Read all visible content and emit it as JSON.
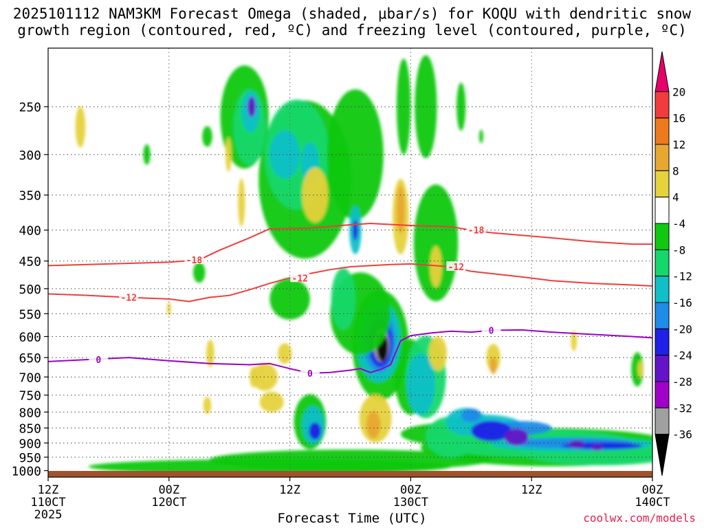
{
  "title": {
    "line1": "2025101112 NAM3KM Forecast Omega (shaded, μbar/s) for KOQU with dendritic snow",
    "line2": "growth region (contoured, red, ºC) and freezing level (contoured, purple, ºC)"
  },
  "xlabel": "Forecast Time (UTC)",
  "credit": "coolwx.com/models",
  "chart_data": {
    "type": "heatmap",
    "title": "2025101112 NAM3KM Forecast Omega (shaded, μbar/s) for KOQU with dendritic snow growth region (contoured, red, ºC) and freezing level (contoured, purple, ºC)",
    "xlabel": "Forecast Time (UTC)",
    "ylabel": "",
    "x_range_hours": [
      0,
      60
    ],
    "y_range_hPa": [
      1025,
      200
    ],
    "y_scale": "log-pressure (inverted)",
    "grid": true,
    "x_ticks": [
      {
        "h": 0,
        "lines": [
          "12Z",
          "110CT",
          "2025"
        ]
      },
      {
        "h": 12,
        "lines": [
          "00Z",
          "120CT"
        ]
      },
      {
        "h": 24,
        "lines": [
          "12Z"
        ]
      },
      {
        "h": 36,
        "lines": [
          "00Z",
          "130CT"
        ]
      },
      {
        "h": 48,
        "lines": [
          "12Z"
        ]
      },
      {
        "h": 60,
        "lines": [
          "00Z",
          "140CT"
        ]
      }
    ],
    "y_ticks": [
      250,
      300,
      350,
      400,
      450,
      500,
      550,
      600,
      650,
      700,
      750,
      800,
      850,
      900,
      950,
      1000
    ],
    "colorbar": {
      "labels": [
        20,
        16,
        12,
        8,
        4,
        -4,
        -8,
        -12,
        -16,
        -20,
        -24,
        -28,
        -32,
        -36
      ],
      "colors": [
        "#e8006a",
        "#f03c3c",
        "#ee7a1c",
        "#e8a830",
        "#e6d23c",
        "#ffffff",
        "#10c810",
        "#14d86c",
        "#10c0c8",
        "#1e8ce8",
        "#2020e8",
        "#6414c8",
        "#a000c8",
        "#a0a0a0",
        "#000000"
      ]
    },
    "contours": [
      {
        "label": "-18",
        "color": "#f03c3c",
        "points": [
          [
            0,
            458
          ],
          [
            6,
            455
          ],
          [
            12,
            452
          ],
          [
            15,
            448
          ],
          [
            17,
            432
          ],
          [
            20,
            412
          ],
          [
            22,
            398
          ],
          [
            26,
            397
          ],
          [
            30,
            392
          ],
          [
            32,
            390
          ],
          [
            36,
            393
          ],
          [
            40,
            395
          ],
          [
            42,
            400
          ],
          [
            44,
            404
          ],
          [
            47,
            408
          ],
          [
            50,
            412
          ],
          [
            54,
            418
          ],
          [
            58,
            422
          ],
          [
            60,
            422
          ]
        ]
      },
      {
        "label": "-12",
        "color": "#f03c3c",
        "points": [
          [
            0,
            510
          ],
          [
            4,
            513
          ],
          [
            8,
            517
          ],
          [
            12,
            520
          ],
          [
            14,
            525
          ],
          [
            16,
            517
          ],
          [
            18,
            513
          ],
          [
            20,
            502
          ],
          [
            22,
            490
          ],
          [
            24,
            480
          ],
          [
            26,
            472
          ],
          [
            28,
            465
          ],
          [
            30,
            460
          ],
          [
            32,
            458
          ],
          [
            34,
            456
          ],
          [
            36,
            455
          ],
          [
            40,
            460
          ],
          [
            42,
            468
          ],
          [
            44,
            472
          ],
          [
            47,
            478
          ],
          [
            50,
            485
          ],
          [
            54,
            490
          ],
          [
            58,
            493
          ],
          [
            60,
            495
          ]
        ]
      },
      {
        "label": "0",
        "color": "#9a00c8",
        "points": [
          [
            0,
            660
          ],
          [
            4,
            655
          ],
          [
            8,
            650
          ],
          [
            12,
            658
          ],
          [
            16,
            665
          ],
          [
            20,
            668
          ],
          [
            22,
            665
          ],
          [
            24,
            678
          ],
          [
            26,
            690
          ],
          [
            28,
            688
          ],
          [
            30,
            682
          ],
          [
            31,
            678
          ],
          [
            32,
            688
          ],
          [
            33,
            680
          ],
          [
            34,
            668
          ],
          [
            35,
            610
          ],
          [
            36,
            598
          ],
          [
            38,
            592
          ],
          [
            40,
            588
          ],
          [
            42,
            590
          ],
          [
            44,
            586
          ],
          [
            47,
            585
          ],
          [
            50,
            590
          ],
          [
            54,
            595
          ],
          [
            58,
            600
          ],
          [
            60,
            603
          ]
        ]
      }
    ],
    "max_updraft_center": {
      "hour": 33,
      "pressure_hPa": 625,
      "omega": -36
    }
  }
}
